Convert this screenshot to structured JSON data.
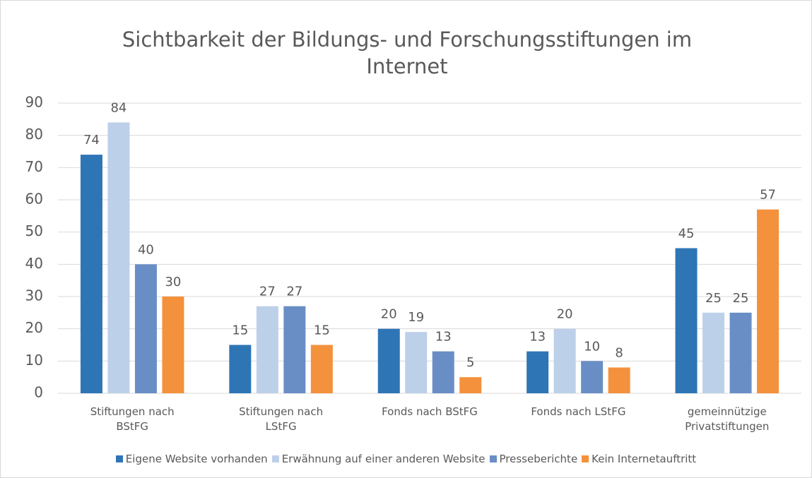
{
  "chart_data": {
    "type": "bar",
    "title": "Sichtbarkeit der Bildungs- und Forschungsstiftungen im Internet",
    "categories": [
      "Stiftungen nach\nBStFG",
      "Stiftungen nach\nLStFG",
      "Fonds nach BStFG",
      "Fonds nach LStFG",
      "gemeinnützige\nPrivatstiftungen"
    ],
    "series": [
      {
        "name": "Eigene Website vorhanden",
        "color": "#2e75b6",
        "values": [
          74,
          15,
          20,
          13,
          45
        ]
      },
      {
        "name": "Erwähnung auf einer anderen Website",
        "color": "#bdd0e9",
        "values": [
          84,
          27,
          19,
          20,
          25
        ]
      },
      {
        "name": "Presseberichte",
        "color": "#698ec6",
        "values": [
          40,
          27,
          13,
          10,
          25
        ]
      },
      {
        "name": "Kein Internetauftritt",
        "color": "#f4913c",
        "values": [
          30,
          15,
          5,
          8,
          57
        ]
      }
    ],
    "ylim": [
      0,
      90
    ],
    "yticks": [
      0,
      10,
      20,
      30,
      40,
      50,
      60,
      70,
      80,
      90
    ],
    "grid": true,
    "legend": "bottom"
  }
}
